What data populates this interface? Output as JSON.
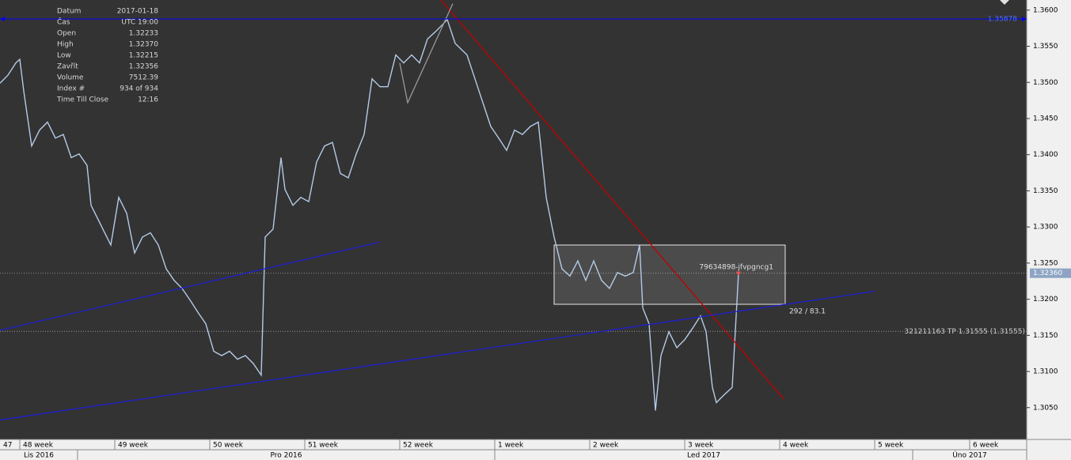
{
  "chart_data": {
    "type": "line",
    "color": "#b4cbe6",
    "info_panel": [
      {
        "label": "Datum",
        "value": "2017-01-18"
      },
      {
        "label": "Čas",
        "value": "UTC 19:00"
      },
      {
        "label": "Open",
        "value": "1.32233"
      },
      {
        "label": "High",
        "value": "1.32370"
      },
      {
        "label": "Low",
        "value": "1.32215"
      },
      {
        "label": "Zavřít",
        "value": "1.32356"
      },
      {
        "label": "Volume",
        "value": "7512.39"
      },
      {
        "label": "Index #",
        "value": "934 of 934"
      },
      {
        "label": "Time Till Close",
        "value": "12:16"
      }
    ],
    "x": [
      -0.208,
      -0.125,
      -0.042,
      0,
      0.042,
      0.125,
      0.208,
      0.292,
      0.375,
      0.458,
      0.542,
      0.625,
      0.708,
      0.75,
      0.875,
      0.958,
      1.042,
      1.125,
      1.208,
      1.292,
      1.375,
      1.458,
      1.542,
      1.625,
      1.708,
      1.792,
      1.875,
      1.958,
      2.042,
      2.125,
      2.208,
      2.292,
      2.375,
      2.458,
      2.542,
      2.583,
      2.667,
      2.75,
      2.792,
      2.875,
      2.958,
      3.042,
      3.125,
      3.208,
      3.292,
      3.375,
      3.458,
      3.542,
      3.625,
      3.708,
      3.792,
      3.875,
      3.958,
      4.042,
      4.125,
      4.208,
      4.292,
      4.375,
      4.458,
      4.5,
      4.583,
      4.708,
      4.792,
      4.875,
      4.958,
      5.042,
      5.125,
      5.208,
      5.292,
      5.375,
      5.458,
      5.542,
      5.625,
      5.708,
      5.792,
      5.875,
      5.958,
      6.042,
      6.125,
      6.208,
      6.292,
      6.375,
      6.458,
      6.525,
      6.558,
      6.625,
      6.692,
      6.75,
      6.833,
      6.917,
      7.0,
      7.083,
      7.167,
      7.225,
      7.292,
      7.333,
      7.417,
      7.5,
      7.542,
      7.567
    ],
    "values": [
      1.3499,
      1.351,
      1.3527,
      1.3532,
      1.3488,
      1.3412,
      1.3434,
      1.3445,
      1.3423,
      1.3428,
      1.3396,
      1.3401,
      1.3385,
      1.333,
      1.3297,
      1.3275,
      1.3341,
      1.3319,
      1.3264,
      1.3286,
      1.3292,
      1.3275,
      1.3242,
      1.3226,
      1.3215,
      1.3199,
      1.3182,
      1.3166,
      1.3128,
      1.3122,
      1.3128,
      1.3117,
      1.3122,
      1.3111,
      1.3095,
      1.3286,
      1.3297,
      1.3396,
      1.3352,
      1.333,
      1.3341,
      1.3335,
      1.339,
      1.3412,
      1.3417,
      1.3374,
      1.3368,
      1.3401,
      1.3428,
      1.3505,
      1.3494,
      1.3494,
      1.3538,
      1.3527,
      1.3538,
      1.3527,
      1.356,
      1.357,
      1.3581,
      1.3587,
      1.3554,
      1.3538,
      1.3505,
      1.3472,
      1.3439,
      1.3423,
      1.3406,
      1.3434,
      1.3428,
      1.3439,
      1.3445,
      1.3341,
      1.3286,
      1.3242,
      1.3232,
      1.3253,
      1.3226,
      1.3253,
      1.3226,
      1.3215,
      1.3237,
      1.3232,
      1.3237,
      1.3275,
      1.3188,
      1.3166,
      1.3046,
      1.3122,
      1.3155,
      1.3133,
      1.3144,
      1.316,
      1.3177,
      1.3155,
      1.3078,
      1.3057,
      1.3068,
      1.3078,
      1.3177,
      1.3237
    ],
    "xlim": [
      -0.2083,
      10.6
    ],
    "ylim": [
      1.3006,
      1.3614
    ],
    "xticks": [
      {
        "value": -1,
        "label": "47"
      },
      {
        "value": 0,
        "label": "48 week"
      },
      {
        "value": 1,
        "label": "49 week"
      },
      {
        "value": 2,
        "label": "50 week"
      },
      {
        "value": 3,
        "label": "51 week"
      },
      {
        "value": 4,
        "label": "52 week"
      },
      {
        "value": 5,
        "label": "1 week"
      },
      {
        "value": 6,
        "label": "2 week"
      },
      {
        "value": 7,
        "label": "3 week"
      },
      {
        "value": 8,
        "label": "4 week"
      },
      {
        "value": 9,
        "label": "5 week"
      },
      {
        "value": 10,
        "label": "6 week"
      }
    ],
    "months": [
      {
        "value": -3.68,
        "label": "Lis 2016"
      },
      {
        "value": 0.608,
        "label": "Pro 2016"
      },
      {
        "value": 5.0,
        "label": "Led 2017"
      },
      {
        "value": 9.4,
        "label": "Úno 2017"
      }
    ],
    "yticks": [
      {
        "value": 1.305,
        "label": "1.3050"
      },
      {
        "value": 1.31,
        "label": "1.3100"
      },
      {
        "value": 1.315,
        "label": "1.3150"
      },
      {
        "value": 1.32,
        "label": "1.3200"
      },
      {
        "value": 1.325,
        "label": "1.3250"
      },
      {
        "value": 1.33,
        "label": "1.3300"
      },
      {
        "value": 1.335,
        "label": "1.3350"
      },
      {
        "value": 1.34,
        "label": "1.3400"
      },
      {
        "value": 1.345,
        "label": "1.3450"
      },
      {
        "value": 1.35,
        "label": "1.3500"
      },
      {
        "value": 1.355,
        "label": "1.3550"
      },
      {
        "value": 1.36,
        "label": "1.3600"
      }
    ],
    "trendlines": [
      {
        "color": "#c00000",
        "x": [
          4.433,
          8.042
        ],
        "y": [
          1.3614,
          1.3062
        ]
      },
      {
        "color": "#1f1fd0",
        "x": [
          -0.208,
          3.792
        ],
        "y": [
          1.3157,
          1.3279
        ]
      },
      {
        "color": "#1f1fd0",
        "x": [
          -0.208,
          9.0
        ],
        "y": [
          1.3033,
          1.3211
        ]
      },
      {
        "color": "#9a9a9a",
        "x": [
          4.0,
          4.083,
          4.558
        ],
        "y": [
          1.3527,
          1.3472,
          1.3609
        ]
      }
    ],
    "rectangle": {
      "x": [
        5.625,
        8.058
      ],
      "y": [
        1.3275,
        1.3193
      ],
      "label": "79634898-jfvpgncg1",
      "measure": "292 / 83.1"
    },
    "hline": {
      "value": 1.35878,
      "color": "#0000ff"
    },
    "current": {
      "value": 1.3236,
      "label": "1.32360"
    },
    "order": {
      "value": 1.31555,
      "label": "321211163 TP 1.31555 (1.31555)"
    }
  }
}
